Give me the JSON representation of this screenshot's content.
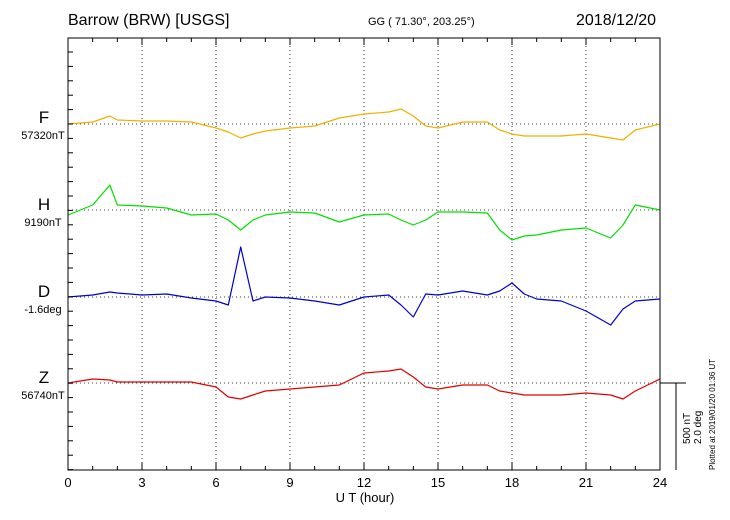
{
  "header": {
    "station": "Barrow (BRW)  [USGS]",
    "coords": "GG ( 71.30°, 203.25°)",
    "date": "2018/12/20"
  },
  "footer": {
    "xlabel": "U T (hour)",
    "plotted": "Plotted at 2019/01/20 01:36 UT",
    "scale_nt": "500 nT",
    "scale_deg": "2.0 deg"
  },
  "colors": {
    "F": "#f0b000",
    "H": "#00e000",
    "D": "#0000d0",
    "Z": "#e00000"
  },
  "chart_data": {
    "type": "line",
    "xlabel": "U T (hour)",
    "xlim": [
      0,
      24
    ],
    "xticks": [
      0,
      3,
      6,
      9,
      12,
      15,
      18,
      21,
      24
    ],
    "x": [
      0,
      1,
      1.7,
      2,
      3,
      4,
      5,
      6,
      6.5,
      7,
      7.5,
      8,
      9,
      10,
      11,
      12,
      13,
      13.5,
      14,
      14.5,
      15,
      16,
      17,
      17.5,
      18,
      18.5,
      19,
      20,
      21,
      22,
      22.5,
      23,
      24
    ],
    "series": [
      {
        "name": "F",
        "baseline": "57320nT",
        "values": [
          0,
          2,
          8,
          4,
          3,
          3,
          2,
          -4,
          -8,
          -14,
          -10,
          -7,
          -4,
          -2,
          6,
          10,
          12,
          15,
          8,
          -2,
          -4,
          2,
          2,
          -6,
          -10,
          -12,
          -12,
          -12,
          -10,
          -14,
          -16,
          -6,
          0
        ]
      },
      {
        "name": "H",
        "baseline": "9190nT",
        "values": [
          -5,
          5,
          25,
          5,
          4,
          2,
          -5,
          -4,
          -10,
          -20,
          -10,
          -5,
          -2,
          -3,
          -12,
          -5,
          -4,
          -10,
          -15,
          -10,
          -2,
          -2,
          -3,
          -20,
          -30,
          -26,
          -25,
          -20,
          -18,
          -28,
          -15,
          5,
          0
        ]
      },
      {
        "name": "D",
        "baseline": "-1.6deg",
        "values": [
          0,
          2,
          5,
          4,
          2,
          3,
          -1,
          -4,
          -8,
          50,
          -4,
          0,
          -1,
          -4,
          -8,
          0,
          2,
          -8,
          -20,
          3,
          2,
          6,
          2,
          6,
          14,
          3,
          -2,
          -4,
          -14,
          -28,
          -12,
          -4,
          -2
        ]
      },
      {
        "name": "Z",
        "baseline": "56740nT",
        "values": [
          0,
          4,
          3,
          1,
          1,
          1,
          1,
          -4,
          -14,
          -16,
          -12,
          -8,
          -6,
          -4,
          -2,
          10,
          12,
          14,
          6,
          -4,
          -6,
          -2,
          -2,
          -8,
          -10,
          -12,
          -12,
          -12,
          -10,
          -12,
          -16,
          -8,
          4
        ]
      }
    ]
  }
}
